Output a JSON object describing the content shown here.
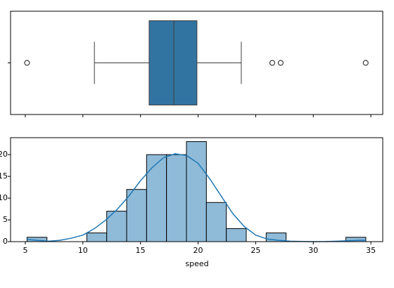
{
  "chart_data": [
    {
      "type": "boxplot",
      "color": "#3274a1",
      "whislo": 11.0,
      "q1": 15.75,
      "med": 17.9,
      "q3": 19.9,
      "whishi": 23.75,
      "fliers": [
        5.15,
        26.44,
        27.17,
        34.55
      ],
      "xlim": [
        3.72,
        36.03
      ],
      "xticks": [
        5,
        10,
        15,
        20,
        25,
        30,
        35
      ]
    },
    {
      "type": "histogram",
      "color": "#8fbbd9",
      "kde_color": "#1f77b4",
      "bins": [
        5.15,
        6.88,
        8.61,
        10.34,
        12.07,
        13.8,
        15.53,
        17.26,
        18.99,
        20.72,
        22.45,
        24.18,
        25.91,
        27.64,
        29.37,
        31.1,
        32.83,
        34.56
      ],
      "values": [
        1,
        0,
        0,
        2,
        7,
        12,
        20,
        20,
        23,
        9,
        3,
        0,
        2,
        0,
        0,
        0,
        1
      ],
      "kde_x": [
        5.15,
        6,
        7,
        8,
        9,
        10,
        11,
        12,
        13,
        14,
        15,
        16,
        17,
        18,
        19,
        20,
        21,
        22,
        23,
        24,
        25,
        26,
        27,
        28,
        29,
        30,
        31,
        32,
        33,
        34,
        34.56
      ],
      "kde_y": [
        0.5,
        0.3,
        0.1,
        0.3,
        0.8,
        1.5,
        3,
        5,
        7.5,
        10.5,
        14,
        17,
        19.3,
        20.2,
        19.8,
        18,
        14.5,
        10.5,
        6.5,
        3.5,
        1.5,
        0.6,
        0.3,
        0.1,
        0.05,
        0,
        0.02,
        0.1,
        0.2,
        0.3,
        0.3
      ],
      "xlabel": "speed",
      "xlim": [
        3.72,
        36.03
      ],
      "xticks": [
        5,
        10,
        15,
        20,
        25,
        30,
        35
      ],
      "ylim": [
        0,
        23.9
      ],
      "yticks": [
        0,
        5,
        10,
        15,
        20
      ]
    }
  ]
}
